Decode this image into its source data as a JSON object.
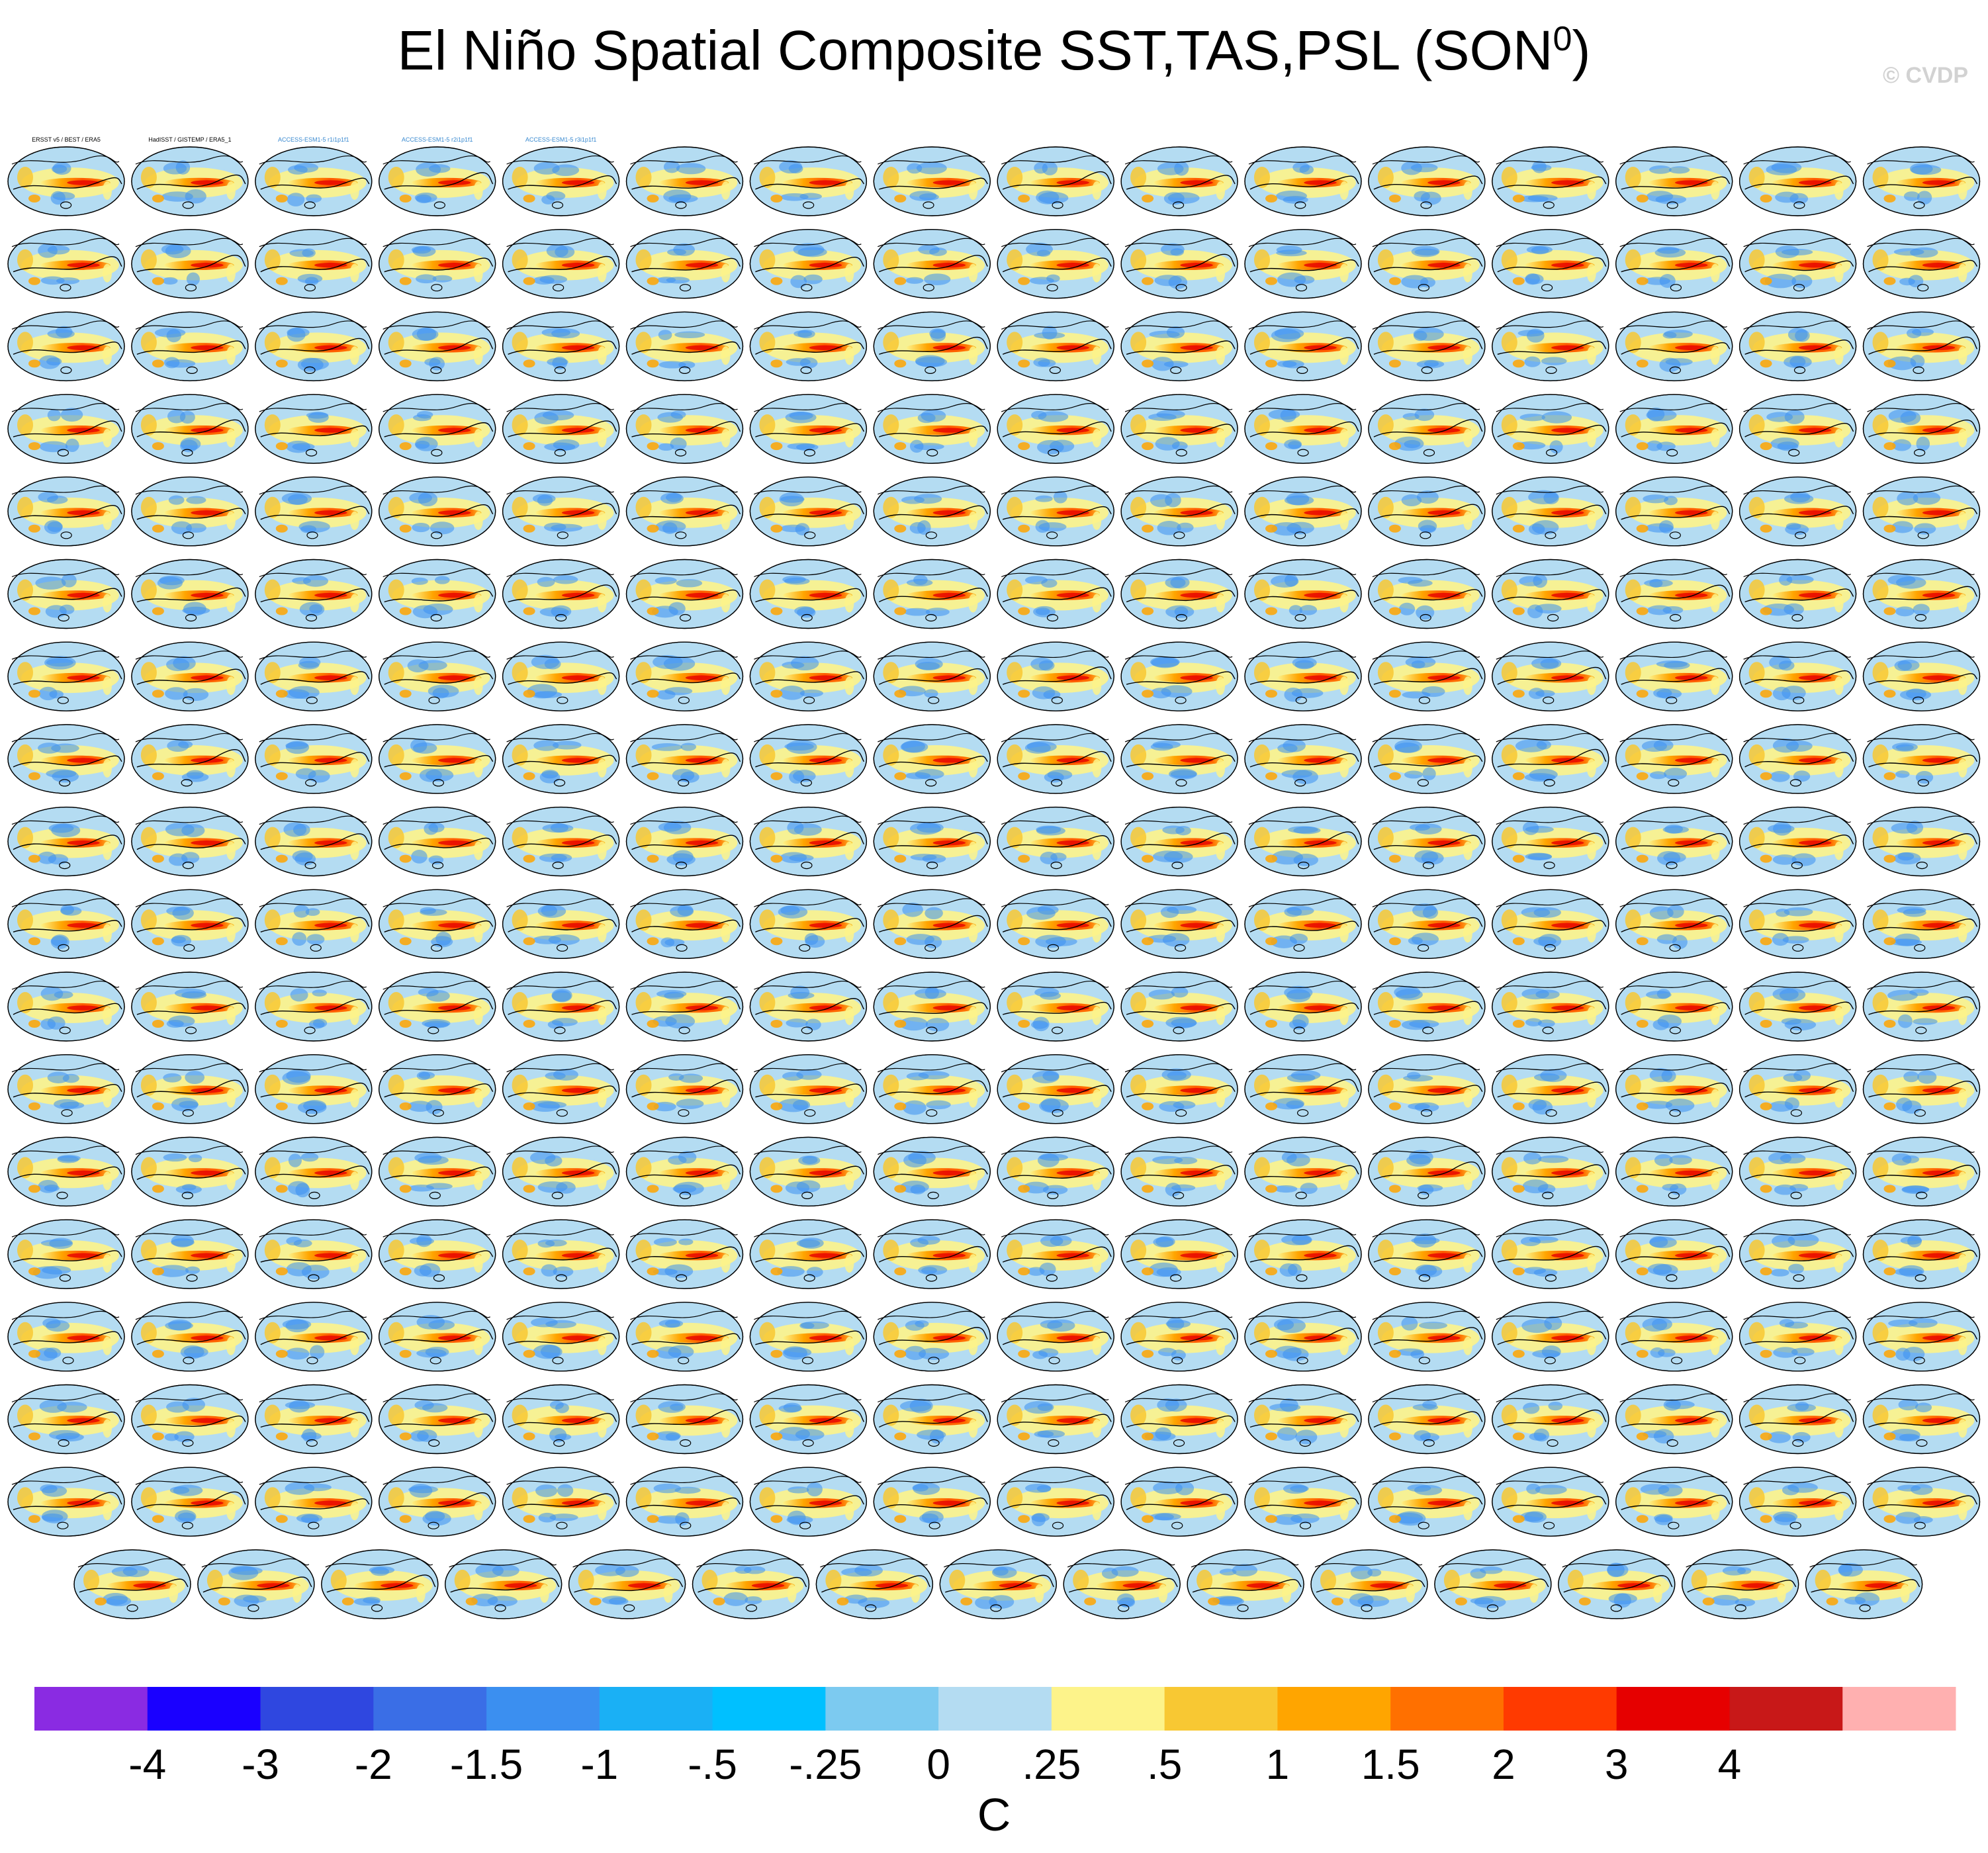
{
  "title": {
    "text": "El Niño Spatial Composite SST,TAS,PSL (SON",
    "superscript": "0",
    "close": ")"
  },
  "watermark": "© CVDP",
  "chart_data": {
    "type": "heatmap",
    "description_fields_visible": "panel grid of global composite maps with filled SST/TAS anomalies and PSL contours",
    "panels": {
      "rows": 18,
      "cols_full_rows": 16,
      "cols_last_row": 15,
      "first_labels": [
        "ERSST v5 / BEST / ERA5",
        "HadISST / GISTEMP / ERA5_1",
        "ACCESS-ESM1-5 r1i1p1f1",
        "ACCESS-ESM1-5 r2i1p1f1",
        "ACCESS-ESM1-5 r3i1p1f1"
      ]
    },
    "colorbar": {
      "levels": [
        "-4",
        "-3",
        "-2",
        "-1.5",
        "-1",
        "-.5",
        "-.25",
        "0",
        ".25",
        ".5",
        "1",
        "1.5",
        "2",
        "3",
        "4"
      ],
      "colors": [
        "#8a2be2",
        "#1a00ff",
        "#2f47e0",
        "#3a6ee6",
        "#3b8ff0",
        "#1ab0f5",
        "#00c0ff",
        "#7ccaf0",
        "#b4dcf2",
        "#fdf38a",
        "#f8c833",
        "#ffa500",
        "#ff7000",
        "#ff3a00",
        "#e60000",
        "#c81818",
        "#ffb0b0"
      ],
      "units": "C"
    }
  }
}
